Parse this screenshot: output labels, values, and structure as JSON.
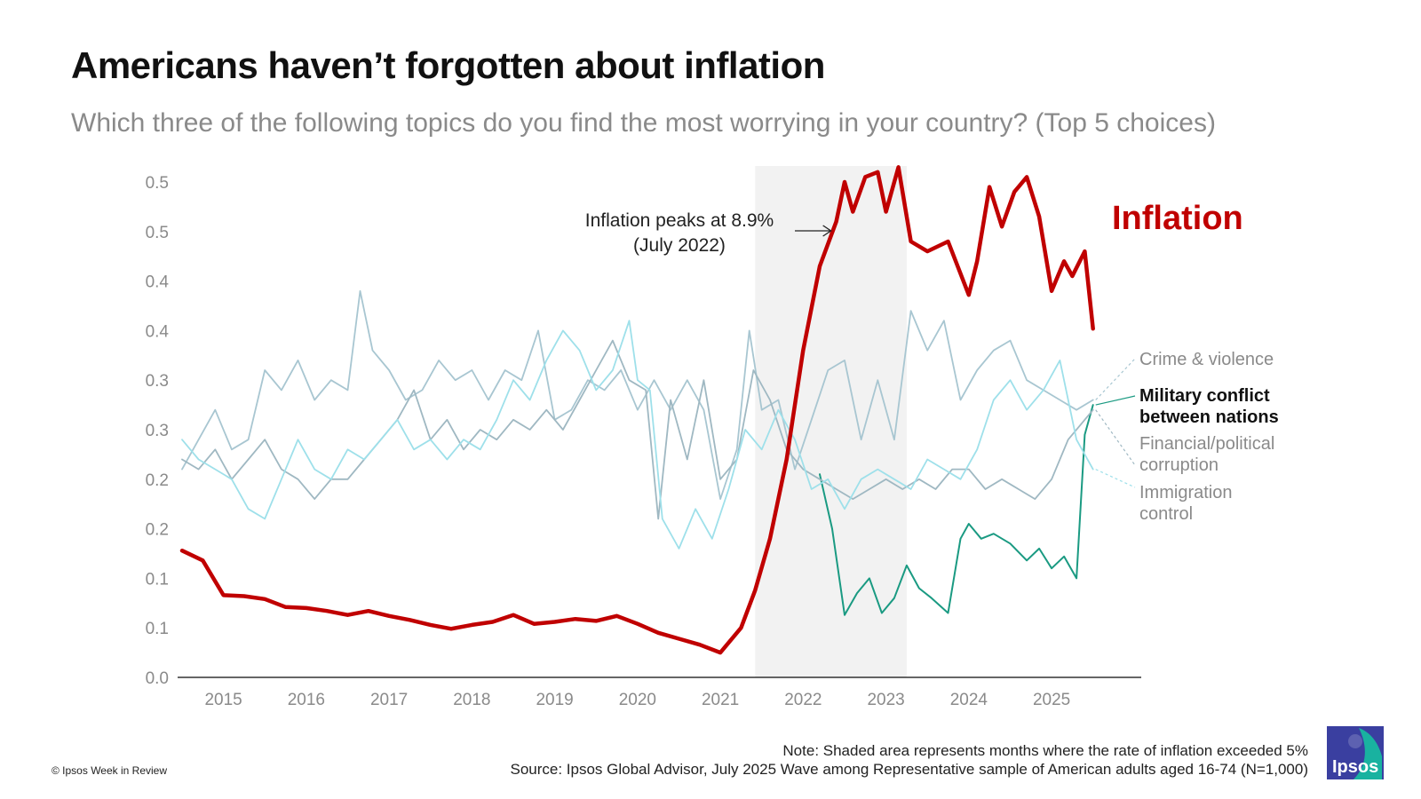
{
  "title": "Americans haven’t forgotten about inflation",
  "subtitle": "Which three of the following topics do you find the most worrying in your country? (Top 5 choices)",
  "note": "Note: Shaded area represents months where the rate of inflation exceeded 5%",
  "source": "Source: Ipsos Global Advisor, July 2025 Wave among Representative sample of American adults aged 16-74 (N=1,000)",
  "copyright": "© Ipsos Week in Review",
  "logo_text": "Ipsos",
  "colors": {
    "inflation": "#c00000",
    "military": "#1a9a82",
    "crime": "#a8c6d1",
    "financial": "#9fb8c2",
    "immigration": "#9ee0ea",
    "shade": "#f2f2f2",
    "logo": "#3a3fa0",
    "logo_accent": "#19b2a0"
  },
  "chart_data": {
    "type": "line",
    "x_unit": "year",
    "xlim": [
      2014.5,
      2025.9
    ],
    "ylim": [
      0,
      0.5
    ],
    "y_ticks": [
      0.0,
      0.05,
      0.1,
      0.15,
      0.2,
      0.25,
      0.3,
      0.35,
      0.4,
      0.45,
      0.5
    ],
    "y_tick_labels": [
      "0.0",
      "0.1",
      "0.1",
      "0.2",
      "0.2",
      "0.3",
      "0.3",
      "0.4",
      "0.4",
      "0.5",
      "0.5"
    ],
    "x_ticks": [
      2015,
      2016,
      2017,
      2018,
      2019,
      2020,
      2021,
      2022,
      2023,
      2024,
      2025
    ],
    "x_tick_labels": [
      "2015",
      "2016",
      "2017",
      "2018",
      "2019",
      "2020",
      "2021",
      "2022",
      "2023",
      "2024",
      "2025"
    ],
    "grid": false,
    "shaded_region": [
      2021.42,
      2023.25
    ],
    "annotation": {
      "text_line1": "Inflation peaks at 8.9%",
      "text_line2": "(July 2022)",
      "arrow_end": [
        2022.4,
        0.455
      ]
    },
    "series": [
      {
        "name": "Inflation",
        "color_key": "inflation",
        "emphasis": true,
        "x": [
          2014.5,
          2014.75,
          2015.0,
          2015.25,
          2015.5,
          2015.75,
          2016.0,
          2016.25,
          2016.5,
          2016.75,
          2017.0,
          2017.25,
          2017.5,
          2017.75,
          2018.0,
          2018.25,
          2018.5,
          2018.75,
          2019.0,
          2019.25,
          2019.5,
          2019.75,
          2020.0,
          2020.25,
          2020.5,
          2020.75,
          2021.0,
          2021.25,
          2021.42,
          2021.6,
          2021.8,
          2022.0,
          2022.2,
          2022.4,
          2022.5,
          2022.6,
          2022.75,
          2022.9,
          2023.0,
          2023.15,
          2023.3,
          2023.5,
          2023.75,
          2024.0,
          2024.1,
          2024.25,
          2024.4,
          2024.55,
          2024.7,
          2024.85,
          2025.0,
          2025.15,
          2025.25,
          2025.4,
          2025.5
        ],
        "y": [
          0.128,
          0.118,
          0.083,
          0.082,
          0.079,
          0.071,
          0.07,
          0.067,
          0.063,
          0.067,
          0.062,
          0.058,
          0.053,
          0.049,
          0.053,
          0.056,
          0.063,
          0.054,
          0.056,
          0.059,
          0.057,
          0.062,
          0.054,
          0.045,
          0.039,
          0.033,
          0.025,
          0.05,
          0.088,
          0.14,
          0.22,
          0.33,
          0.415,
          0.46,
          0.5,
          0.47,
          0.505,
          0.51,
          0.47,
          0.515,
          0.44,
          0.43,
          0.44,
          0.386,
          0.42,
          0.495,
          0.455,
          0.49,
          0.505,
          0.465,
          0.39,
          0.42,
          0.405,
          0.43,
          0.352
        ]
      },
      {
        "name": "Military conflict between nations",
        "color_key": "military",
        "label_bold": true,
        "x": [
          2022.2,
          2022.35,
          2022.5,
          2022.65,
          2022.8,
          2022.95,
          2023.1,
          2023.25,
          2023.4,
          2023.55,
          2023.75,
          2023.9,
          2024.0,
          2024.15,
          2024.3,
          2024.5,
          2024.7,
          2024.85,
          2025.0,
          2025.15,
          2025.3,
          2025.4,
          2025.5
        ],
        "y": [
          0.205,
          0.15,
          0.063,
          0.085,
          0.1,
          0.065,
          0.08,
          0.113,
          0.09,
          0.08,
          0.065,
          0.14,
          0.155,
          0.14,
          0.145,
          0.135,
          0.118,
          0.13,
          0.11,
          0.122,
          0.1,
          0.245,
          0.275
        ]
      },
      {
        "name": "Crime & violence",
        "color_key": "crime",
        "x": [
          2014.5,
          2014.7,
          2014.9,
          2015.1,
          2015.3,
          2015.5,
          2015.7,
          2015.9,
          2016.1,
          2016.3,
          2016.5,
          2016.65,
          2016.8,
          2017.0,
          2017.2,
          2017.4,
          2017.6,
          2017.8,
          2018.0,
          2018.2,
          2018.4,
          2018.6,
          2018.8,
          2019.0,
          2019.2,
          2019.4,
          2019.6,
          2019.8,
          2020.0,
          2020.2,
          2020.4,
          2020.6,
          2020.8,
          2021.0,
          2021.2,
          2021.35,
          2021.5,
          2021.7,
          2021.9,
          2022.1,
          2022.3,
          2022.5,
          2022.7,
          2022.9,
          2023.1,
          2023.3,
          2023.5,
          2023.7,
          2023.9,
          2024.1,
          2024.3,
          2024.5,
          2024.7,
          2024.9,
          2025.1,
          2025.3,
          2025.5
        ],
        "y": [
          0.21,
          0.24,
          0.27,
          0.23,
          0.24,
          0.31,
          0.29,
          0.32,
          0.28,
          0.3,
          0.29,
          0.39,
          0.33,
          0.31,
          0.28,
          0.29,
          0.32,
          0.3,
          0.31,
          0.28,
          0.31,
          0.3,
          0.35,
          0.26,
          0.27,
          0.3,
          0.29,
          0.31,
          0.27,
          0.3,
          0.27,
          0.3,
          0.27,
          0.18,
          0.23,
          0.35,
          0.27,
          0.28,
          0.21,
          0.26,
          0.31,
          0.32,
          0.24,
          0.3,
          0.24,
          0.37,
          0.33,
          0.36,
          0.28,
          0.31,
          0.33,
          0.34,
          0.3,
          0.29,
          0.28,
          0.27,
          0.28
        ]
      },
      {
        "name": "Financial/political corruption",
        "color_key": "financial",
        "x": [
          2014.5,
          2014.7,
          2014.9,
          2015.1,
          2015.3,
          2015.5,
          2015.7,
          2015.9,
          2016.1,
          2016.3,
          2016.5,
          2016.7,
          2016.9,
          2017.1,
          2017.3,
          2017.5,
          2017.7,
          2017.9,
          2018.1,
          2018.3,
          2018.5,
          2018.7,
          2018.9,
          2019.1,
          2019.3,
          2019.5,
          2019.7,
          2019.9,
          2020.1,
          2020.25,
          2020.4,
          2020.6,
          2020.8,
          2021.0,
          2021.2,
          2021.4,
          2021.6,
          2021.8,
          2022.0,
          2022.2,
          2022.4,
          2022.6,
          2022.8,
          2023.0,
          2023.2,
          2023.4,
          2023.6,
          2023.8,
          2024.0,
          2024.2,
          2024.4,
          2024.6,
          2024.8,
          2025.0,
          2025.2,
          2025.4,
          2025.5
        ],
        "y": [
          0.22,
          0.21,
          0.23,
          0.2,
          0.22,
          0.24,
          0.21,
          0.2,
          0.18,
          0.2,
          0.2,
          0.22,
          0.24,
          0.26,
          0.29,
          0.24,
          0.26,
          0.23,
          0.25,
          0.24,
          0.26,
          0.25,
          0.27,
          0.25,
          0.28,
          0.31,
          0.34,
          0.3,
          0.29,
          0.16,
          0.28,
          0.22,
          0.3,
          0.2,
          0.22,
          0.31,
          0.28,
          0.23,
          0.21,
          0.2,
          0.19,
          0.18,
          0.19,
          0.2,
          0.19,
          0.2,
          0.19,
          0.21,
          0.21,
          0.19,
          0.2,
          0.19,
          0.18,
          0.2,
          0.24,
          0.26,
          0.27
        ]
      },
      {
        "name": "Immigration control",
        "color_key": "immigration",
        "x": [
          2014.5,
          2014.7,
          2014.9,
          2015.1,
          2015.3,
          2015.5,
          2015.7,
          2015.9,
          2016.1,
          2016.3,
          2016.5,
          2016.7,
          2016.9,
          2017.1,
          2017.3,
          2017.5,
          2017.7,
          2017.9,
          2018.1,
          2018.3,
          2018.5,
          2018.7,
          2018.9,
          2019.1,
          2019.3,
          2019.5,
          2019.7,
          2019.9,
          2020.0,
          2020.15,
          2020.3,
          2020.5,
          2020.7,
          2020.9,
          2021.1,
          2021.3,
          2021.5,
          2021.7,
          2021.9,
          2022.1,
          2022.3,
          2022.5,
          2022.7,
          2022.9,
          2023.1,
          2023.3,
          2023.5,
          2023.7,
          2023.9,
          2024.1,
          2024.3,
          2024.5,
          2024.7,
          2024.9,
          2025.1,
          2025.3,
          2025.5
        ],
        "y": [
          0.24,
          0.22,
          0.21,
          0.2,
          0.17,
          0.16,
          0.2,
          0.24,
          0.21,
          0.2,
          0.23,
          0.22,
          0.24,
          0.26,
          0.23,
          0.24,
          0.22,
          0.24,
          0.23,
          0.26,
          0.3,
          0.28,
          0.32,
          0.35,
          0.33,
          0.29,
          0.31,
          0.36,
          0.3,
          0.29,
          0.16,
          0.13,
          0.17,
          0.14,
          0.19,
          0.25,
          0.23,
          0.27,
          0.24,
          0.19,
          0.2,
          0.17,
          0.2,
          0.21,
          0.2,
          0.19,
          0.22,
          0.21,
          0.2,
          0.23,
          0.28,
          0.3,
          0.27,
          0.29,
          0.32,
          0.24,
          0.21
        ]
      }
    ]
  }
}
